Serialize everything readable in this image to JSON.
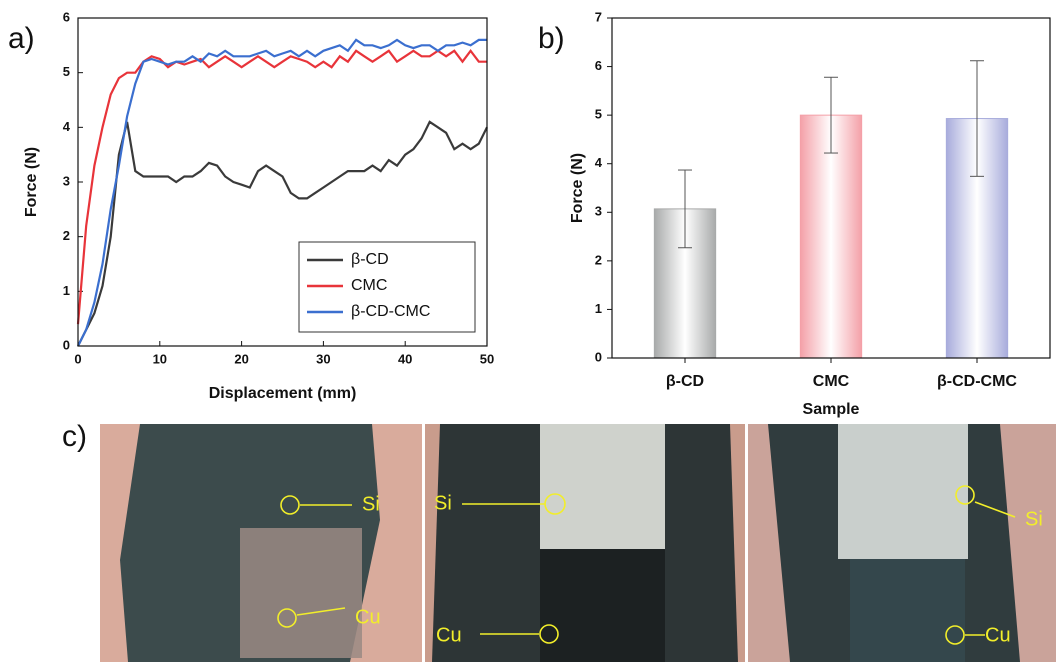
{
  "chart_data": [
    {
      "type": "line",
      "panel_label": "a)",
      "xlabel": "Displacement (mm)",
      "ylabel": "Force (N)",
      "x": [
        0,
        1,
        2,
        3,
        4,
        5,
        6,
        7,
        8,
        9,
        10,
        11,
        12,
        13,
        14,
        15,
        16,
        17,
        18,
        19,
        20,
        21,
        22,
        23,
        24,
        25,
        26,
        27,
        28,
        29,
        30,
        31,
        32,
        33,
        34,
        35,
        36,
        37,
        38,
        39,
        40,
        41,
        42,
        43,
        44,
        45,
        46,
        47,
        48,
        49,
        50
      ],
      "series": [
        {
          "name": "β-CD",
          "color": "#3a3a3a",
          "values": [
            0,
            0.3,
            0.6,
            1.1,
            2.0,
            3.5,
            4.1,
            3.2,
            3.1,
            3.1,
            3.1,
            3.1,
            3.0,
            3.1,
            3.1,
            3.2,
            3.35,
            3.3,
            3.1,
            3.0,
            2.95,
            2.9,
            3.2,
            3.3,
            3.2,
            3.1,
            2.8,
            2.7,
            2.7,
            2.8,
            2.9,
            3.0,
            3.1,
            3.2,
            3.2,
            3.2,
            3.3,
            3.2,
            3.4,
            3.3,
            3.5,
            3.6,
            3.8,
            4.1,
            4.0,
            3.9,
            3.6,
            3.7,
            3.6,
            3.7,
            4.0
          ]
        },
        {
          "name": "CMC",
          "color": "#e8343a",
          "values": [
            0.4,
            2.2,
            3.3,
            4.0,
            4.6,
            4.9,
            5.0,
            5.0,
            5.2,
            5.3,
            5.25,
            5.1,
            5.2,
            5.15,
            5.2,
            5.25,
            5.1,
            5.2,
            5.3,
            5.2,
            5.1,
            5.2,
            5.3,
            5.2,
            5.1,
            5.2,
            5.3,
            5.25,
            5.2,
            5.1,
            5.2,
            5.1,
            5.3,
            5.2,
            5.4,
            5.3,
            5.2,
            5.3,
            5.4,
            5.2,
            5.3,
            5.4,
            5.3,
            5.3,
            5.4,
            5.3,
            5.4,
            5.2,
            5.4,
            5.2,
            5.2
          ]
        },
        {
          "name": "β-CD-CMC",
          "color": "#3b6fcf",
          "values": [
            0,
            0.3,
            0.8,
            1.5,
            2.5,
            3.3,
            4.2,
            4.8,
            5.2,
            5.25,
            5.2,
            5.15,
            5.2,
            5.2,
            5.3,
            5.2,
            5.35,
            5.3,
            5.4,
            5.3,
            5.3,
            5.3,
            5.35,
            5.4,
            5.3,
            5.35,
            5.4,
            5.3,
            5.4,
            5.3,
            5.4,
            5.45,
            5.5,
            5.4,
            5.6,
            5.5,
            5.5,
            5.45,
            5.5,
            5.6,
            5.5,
            5.45,
            5.5,
            5.5,
            5.4,
            5.5,
            5.5,
            5.55,
            5.5,
            5.6,
            5.6
          ]
        }
      ],
      "xlim": [
        0,
        50
      ],
      "xticks": [
        0,
        10,
        20,
        30,
        40,
        50
      ],
      "ylim": [
        0,
        6
      ],
      "yticks": [
        0,
        1,
        2,
        3,
        4,
        5,
        6
      ],
      "legend": "lower right"
    },
    {
      "type": "bar",
      "panel_label": "b)",
      "xlabel": "Sample",
      "ylabel": "Force (N)",
      "categories": [
        "β-CD",
        "CMC",
        "β-CD-CMC"
      ],
      "values": [
        3.07,
        5.0,
        4.93
      ],
      "errors": [
        0.8,
        0.78,
        1.19
      ],
      "colors": [
        "#a8aaaa",
        "#f4a0a8",
        "#a8acdc"
      ],
      "ylim": [
        0,
        7
      ],
      "yticks": [
        0,
        1,
        2,
        3,
        4,
        5,
        6,
        7
      ]
    }
  ],
  "photos": {
    "panel_label": "c)",
    "panels": [
      [
        "Si",
        "Cu"
      ],
      [
        "Si",
        "Cu"
      ],
      [
        "Si",
        "Cu"
      ]
    ]
  }
}
